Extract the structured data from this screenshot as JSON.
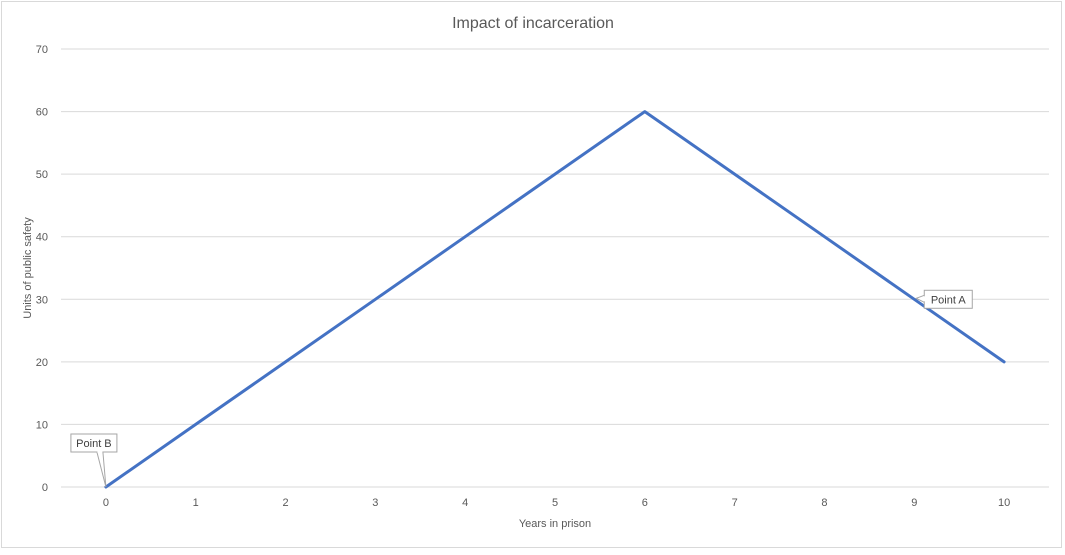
{
  "chart_data": {
    "type": "line",
    "title": "Impact of incarceration",
    "xlabel": "Years in prison",
    "ylabel": "Units of public safety",
    "x": [
      0,
      1,
      2,
      3,
      4,
      5,
      6,
      7,
      8,
      9,
      10
    ],
    "series": [
      {
        "values": [
          0,
          10,
          20,
          30,
          40,
          50,
          60,
          50,
          40,
          30,
          20
        ],
        "color": "#4472c4"
      }
    ],
    "ylim": [
      0,
      70
    ],
    "yticks": [
      0,
      10,
      20,
      30,
      40,
      50,
      60,
      70
    ],
    "grid": true,
    "gridColor": "#d9d9d9",
    "annotations": [
      {
        "text": "Point A",
        "x": 9,
        "y": 30
      },
      {
        "text": "Point B",
        "x": 0,
        "y": 0
      }
    ]
  }
}
